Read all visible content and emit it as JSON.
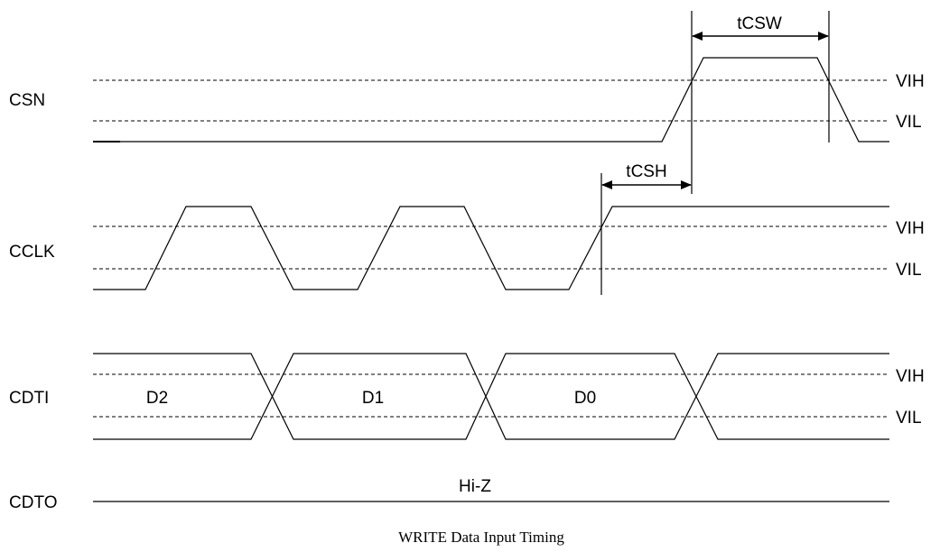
{
  "signals": {
    "csn": "CSN",
    "cclk": "CCLK",
    "cdti": "CDTI",
    "cdto": "CDTO"
  },
  "levels": {
    "vih": "VIH",
    "vil": "VIL"
  },
  "data_bits": {
    "d2": "D2",
    "d1": "D1",
    "d0": "D0"
  },
  "cdto_state": "Hi-Z",
  "timing": {
    "tcsw": "tCSW",
    "tcsh": "tCSH"
  },
  "caption": "WRITE Data Input Timing"
}
